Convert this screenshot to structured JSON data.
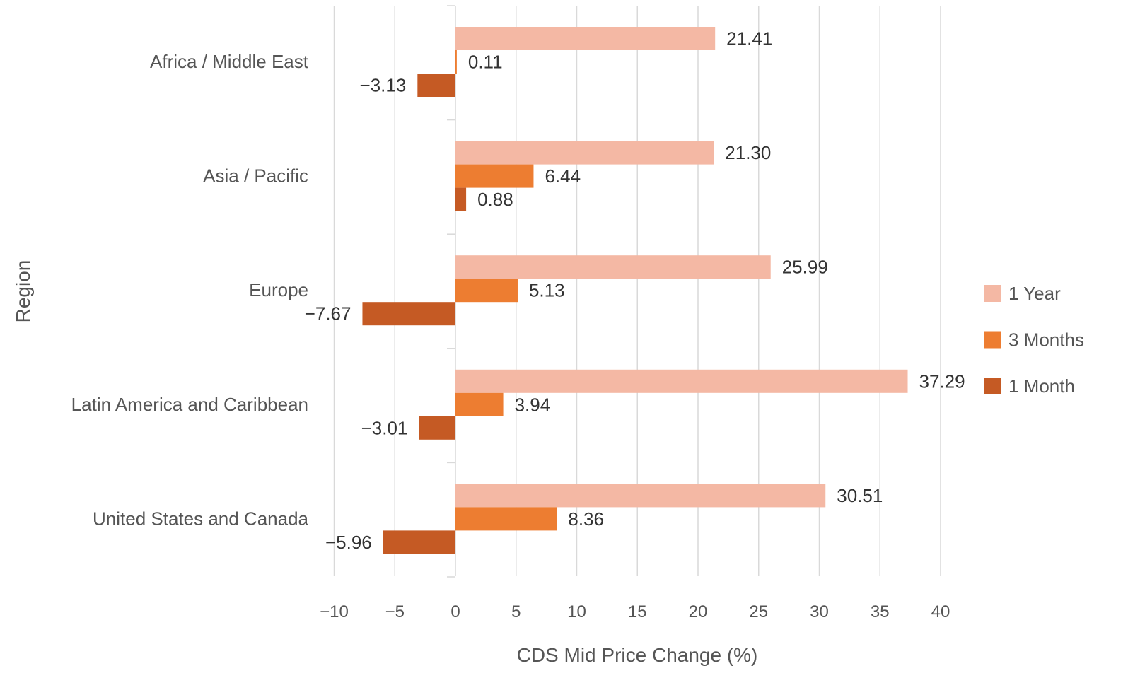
{
  "chart_data": {
    "type": "bar",
    "orientation": "horizontal",
    "title": "",
    "xlabel": "CDS Mid Price Change (%)",
    "ylabel": "Region",
    "xlim": [
      -10,
      40
    ],
    "xticks": [
      "−10",
      "−5",
      "0",
      "5",
      "10",
      "15",
      "20",
      "25",
      "30",
      "35",
      "40"
    ],
    "grid": "vertical",
    "legend_position": "right",
    "categories": [
      "Africa / Middle East",
      "Asia / Pacific",
      "Europe",
      "Latin America and Caribbean",
      "United States and Canada"
    ],
    "series": [
      {
        "name": "1 Year",
        "color": "#f4b8a4",
        "values": [
          21.41,
          21.3,
          25.99,
          37.29,
          30.51
        ],
        "labels": [
          "21.41",
          "21.30",
          "25.99",
          "37.29",
          "30.51"
        ]
      },
      {
        "name": "3 Months",
        "color": "#ed7d31",
        "values": [
          0.11,
          6.44,
          5.13,
          3.94,
          8.36
        ],
        "labels": [
          "0.11",
          "6.44",
          "5.13",
          "3.94",
          "8.36"
        ]
      },
      {
        "name": "1 Month",
        "color": "#c55a24",
        "values": [
          -3.13,
          0.88,
          -7.67,
          -3.01,
          -5.96
        ],
        "labels": [
          "−3.13",
          "0.88",
          "−7.67",
          "−3.01",
          "−5.96"
        ]
      }
    ]
  }
}
